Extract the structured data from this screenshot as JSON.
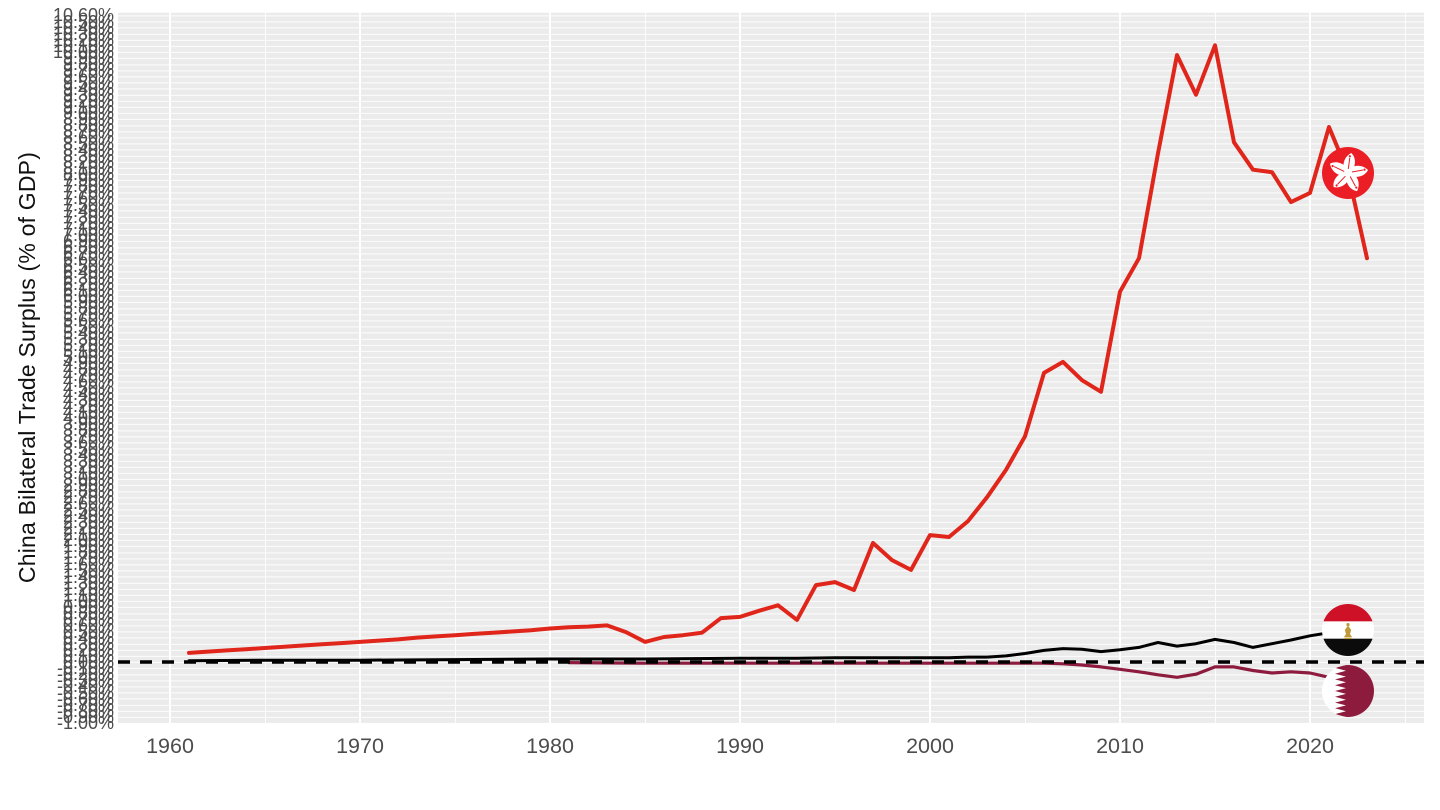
{
  "y_axis_title": "China Bilateral Trade Surplus (% of GDP)",
  "x_axis": {
    "tick_labels": [
      "1960",
      "1970",
      "1980",
      "1990",
      "2000",
      "2010",
      "2020"
    ]
  },
  "y_axis": {
    "tick_min": -1.0,
    "tick_max": 10.6,
    "tick_step": 0.1,
    "tick_suffix": "%",
    "tick_decimals": 2,
    "note": "tick labels are so dense they overlap into a vertical smear"
  },
  "colors": {
    "panel_background": "#ebebeb",
    "gridline": "#ffffff",
    "axis_text": "#4d4d4d",
    "axis_title_text": "#111111",
    "zero_line": "#000000",
    "hong_kong_line": "#e0251b",
    "egypt_line": "#000000",
    "qatar_line": "#8d1b3d"
  },
  "icons": [
    "hong-kong-flag-icon",
    "egypt-flag-icon",
    "qatar-flag-icon"
  ],
  "chart_data": {
    "type": "line",
    "title": "",
    "xlabel": "",
    "ylabel": "China Bilateral Trade Surplus (% of GDP)",
    "grid": true,
    "legend_position": "flag icons placed on each line near its end (year 2022)",
    "x_ticks": [
      1960,
      1970,
      1980,
      1990,
      2000,
      2010,
      2020
    ],
    "x_minor_ticks": [
      1965,
      1975,
      1985,
      1995,
      2005,
      2015,
      2025
    ],
    "x_domain": [
      1957.3,
      2026.1
    ],
    "y_domain_pct": [
      -1.05,
      10.66
    ],
    "zero_line": {
      "value": 0,
      "style": "dashed",
      "order": 1
    },
    "series": [
      {
        "name": "Hong Kong",
        "flag_icon": "hong-kong-flag-icon",
        "flag_id": "hk",
        "color": "#e0251b",
        "width": 4,
        "order": 3,
        "flag_year": 2022,
        "points": [
          [
            1961,
            0.15
          ],
          [
            1962,
            0.17
          ],
          [
            1963,
            0.19
          ],
          [
            1964,
            0.21
          ],
          [
            1965,
            0.23
          ],
          [
            1966,
            0.25
          ],
          [
            1967,
            0.27
          ],
          [
            1968,
            0.29
          ],
          [
            1969,
            0.31
          ],
          [
            1970,
            0.33
          ],
          [
            1971,
            0.35
          ],
          [
            1972,
            0.37
          ],
          [
            1973,
            0.4
          ],
          [
            1974,
            0.42
          ],
          [
            1975,
            0.44
          ],
          [
            1976,
            0.46
          ],
          [
            1977,
            0.48
          ],
          [
            1978,
            0.5
          ],
          [
            1979,
            0.52
          ],
          [
            1980,
            0.55
          ],
          [
            1981,
            0.57
          ],
          [
            1982,
            0.58
          ],
          [
            1983,
            0.6
          ],
          [
            1984,
            0.49
          ],
          [
            1985,
            0.33
          ],
          [
            1986,
            0.41
          ],
          [
            1987,
            0.44
          ],
          [
            1988,
            0.48
          ],
          [
            1989,
            0.72
          ],
          [
            1990,
            0.74
          ],
          [
            1991,
            0.84
          ],
          [
            1992,
            0.93
          ],
          [
            1993,
            0.69
          ],
          [
            1994,
            1.26
          ],
          [
            1995,
            1.31
          ],
          [
            1996,
            1.18
          ],
          [
            1997,
            1.95
          ],
          [
            1998,
            1.67
          ],
          [
            1999,
            1.51
          ],
          [
            2000,
            2.08
          ],
          [
            2001,
            2.05
          ],
          [
            2002,
            2.31
          ],
          [
            2003,
            2.7
          ],
          [
            2004,
            3.15
          ],
          [
            2005,
            3.7
          ],
          [
            2006,
            4.74
          ],
          [
            2007,
            4.92
          ],
          [
            2008,
            4.62
          ],
          [
            2009,
            4.43
          ],
          [
            2010,
            6.07
          ],
          [
            2011,
            6.62
          ],
          [
            2012,
            8.34
          ],
          [
            2013,
            9.95
          ],
          [
            2014,
            9.3
          ],
          [
            2015,
            10.11
          ],
          [
            2016,
            8.52
          ],
          [
            2017,
            8.07
          ],
          [
            2018,
            8.03
          ],
          [
            2019,
            7.54
          ],
          [
            2020,
            7.69
          ],
          [
            2021,
            8.77
          ],
          [
            2022,
            8.02
          ],
          [
            2023,
            6.62
          ]
        ]
      },
      {
        "name": "Egypt",
        "flag_icon": "egypt-flag-icon",
        "flag_id": "eg",
        "color": "#000000",
        "width": 3,
        "order": 2,
        "flag_year": 2022,
        "points": [
          [
            1961,
            0.02
          ],
          [
            1965,
            0.03
          ],
          [
            1970,
            0.03
          ],
          [
            1975,
            0.04
          ],
          [
            1980,
            0.05
          ],
          [
            1985,
            0.05
          ],
          [
            1990,
            0.06
          ],
          [
            1993,
            0.06
          ],
          [
            1995,
            0.07
          ],
          [
            1997,
            0.07
          ],
          [
            2000,
            0.07
          ],
          [
            2001,
            0.07
          ],
          [
            2002,
            0.08
          ],
          [
            2003,
            0.08
          ],
          [
            2004,
            0.1
          ],
          [
            2005,
            0.14
          ],
          [
            2006,
            0.19
          ],
          [
            2007,
            0.22
          ],
          [
            2008,
            0.21
          ],
          [
            2009,
            0.17
          ],
          [
            2010,
            0.2
          ],
          [
            2011,
            0.24
          ],
          [
            2012,
            0.32
          ],
          [
            2013,
            0.26
          ],
          [
            2014,
            0.3
          ],
          [
            2015,
            0.37
          ],
          [
            2016,
            0.32
          ],
          [
            2017,
            0.24
          ],
          [
            2018,
            0.3
          ],
          [
            2019,
            0.36
          ],
          [
            2020,
            0.43
          ],
          [
            2021,
            0.48
          ],
          [
            2022,
            0.52
          ]
        ]
      },
      {
        "name": "Qatar",
        "flag_icon": "qatar-flag-icon",
        "flag_id": "qa",
        "color": "#8d1b3d",
        "width": 3.2,
        "order": 0,
        "flag_year": 2022,
        "points": [
          [
            1981,
            -0.01
          ],
          [
            1985,
            -0.02
          ],
          [
            1990,
            -0.02
          ],
          [
            1995,
            -0.02
          ],
          [
            2000,
            -0.02
          ],
          [
            2004,
            -0.02
          ],
          [
            2006,
            -0.02
          ],
          [
            2007,
            -0.03
          ],
          [
            2008,
            -0.05
          ],
          [
            2009,
            -0.08
          ],
          [
            2010,
            -0.12
          ],
          [
            2011,
            -0.16
          ],
          [
            2012,
            -0.21
          ],
          [
            2013,
            -0.25
          ],
          [
            2014,
            -0.2
          ],
          [
            2015,
            -0.08
          ],
          [
            2016,
            -0.08
          ],
          [
            2017,
            -0.14
          ],
          [
            2018,
            -0.18
          ],
          [
            2019,
            -0.16
          ],
          [
            2020,
            -0.18
          ],
          [
            2021,
            -0.25
          ],
          [
            2022,
            -0.48
          ]
        ]
      }
    ]
  }
}
